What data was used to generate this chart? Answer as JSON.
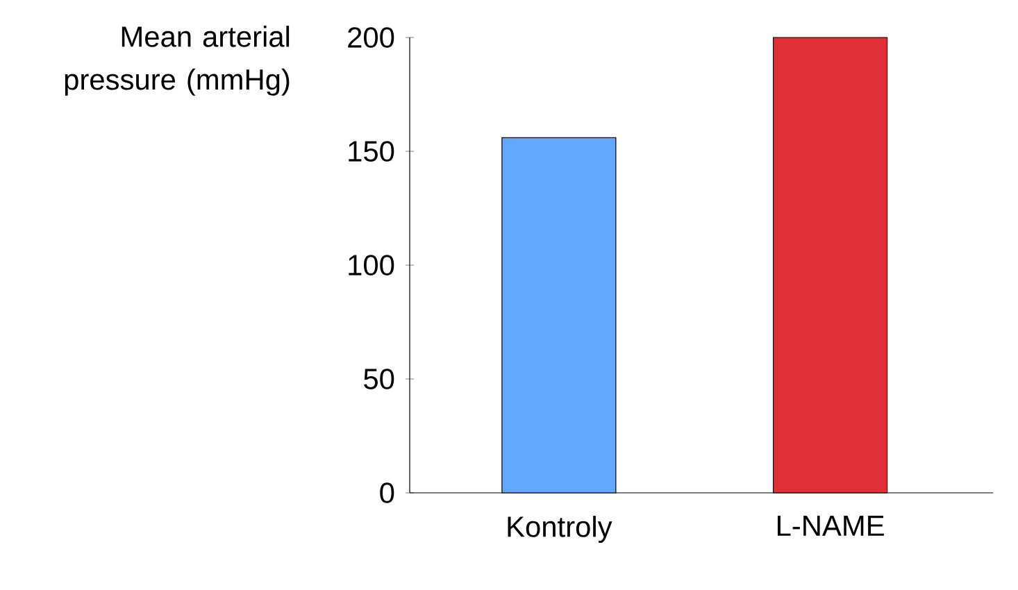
{
  "chart_data": {
    "type": "bar",
    "ylabel": "Mean arterial pressure (mmHg)",
    "categories": [
      "Kontroly",
      "L-NAME"
    ],
    "values": [
      156,
      200
    ],
    "colors": [
      "#62a8fe",
      "#e03035"
    ],
    "ylim": [
      0,
      200
    ],
    "yticks": [
      0,
      50,
      100,
      150,
      200
    ],
    "grid": false
  }
}
